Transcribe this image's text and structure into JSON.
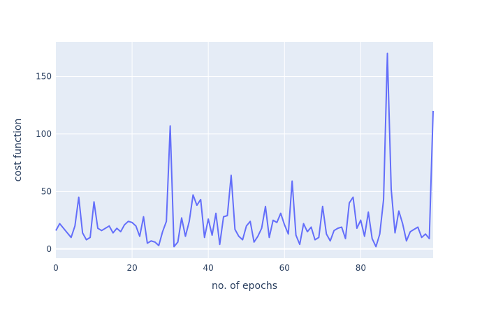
{
  "chart_data": {
    "type": "line",
    "title": "",
    "xlabel": "no. of epochs",
    "ylabel": "cost function",
    "xlim": [
      0,
      99
    ],
    "ylim": [
      -8,
      180
    ],
    "xticks": [
      0,
      20,
      40,
      60,
      80
    ],
    "yticks": [
      0,
      50,
      100,
      150
    ],
    "grid": true,
    "legend": "none",
    "colors": {
      "plot_bg": "#e5ecf6",
      "grid": "#ffffff",
      "line": "#636efa",
      "text": "#2a3f5f"
    },
    "series": [
      {
        "x": [
          0,
          1,
          2,
          3,
          4,
          5,
          6,
          7,
          8,
          9,
          10,
          11,
          12,
          13,
          14,
          15,
          16,
          17,
          18,
          19,
          20,
          21,
          22,
          23,
          24,
          25,
          26,
          27,
          28,
          29,
          30,
          31,
          32,
          33,
          34,
          35,
          36,
          37,
          38,
          39,
          40,
          41,
          42,
          43,
          44,
          45,
          46,
          47,
          48,
          49,
          50,
          51,
          52,
          53,
          54,
          55,
          56,
          57,
          58,
          59,
          60,
          61,
          62,
          63,
          64,
          65,
          66,
          67,
          68,
          69,
          70,
          71,
          72,
          73,
          74,
          75,
          76,
          77,
          78,
          79,
          80,
          81,
          82,
          83,
          84,
          85,
          86,
          87,
          88,
          89,
          90,
          91,
          92,
          93,
          94,
          95,
          96,
          97,
          98,
          99
        ],
        "values": [
          16,
          22,
          18,
          14,
          10,
          20,
          45,
          14,
          8,
          10,
          41,
          18,
          16,
          18,
          20,
          14,
          18,
          15,
          21,
          24,
          23,
          20,
          11,
          28,
          5,
          7,
          6,
          3,
          15,
          24,
          107,
          2,
          6,
          27,
          11,
          24,
          47,
          38,
          43,
          10,
          26,
          12,
          31,
          4,
          28,
          29,
          64,
          17,
          11,
          8,
          20,
          24,
          6,
          11,
          18,
          37,
          10,
          25,
          23,
          31,
          21,
          13,
          59,
          12,
          4,
          22,
          15,
          19,
          8,
          10,
          37,
          13,
          7,
          16,
          18,
          19,
          9,
          40,
          45,
          18,
          25,
          11,
          32,
          9,
          2,
          13,
          43,
          170,
          52,
          14,
          33,
          22,
          7,
          15,
          17,
          19,
          10,
          13,
          9,
          120
        ]
      }
    ]
  }
}
